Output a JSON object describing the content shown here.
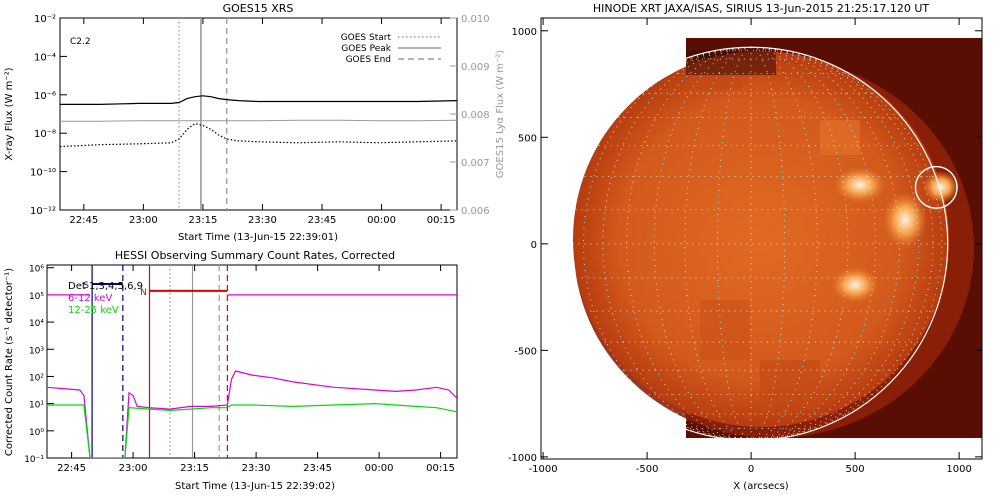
{
  "chart_data": [
    {
      "type": "line",
      "title": "GOES15 XRS",
      "xlabel": "Start Time (13-Jun-15 22:39:01)",
      "ylabel": "X-ray Flux (W m⁻²)",
      "y2label": "GOES15 Lyα Flux (W m⁻²)",
      "annotation": "C2.2",
      "x_ticks": [
        "22:45",
        "23:00",
        "23:15",
        "23:30",
        "23:45",
        "00:00",
        "00:15"
      ],
      "x_tick_minutes": [
        6,
        21,
        36,
        51,
        66,
        81,
        96
      ],
      "xlim_minutes": [
        0,
        100
      ],
      "y_scale": "log",
      "y_ticks": [
        "10⁻²",
        "10⁻⁴",
        "10⁻⁶",
        "10⁻⁸",
        "10⁻¹⁰",
        "10⁻¹²"
      ],
      "y_tick_exp": [
        -2,
        -4,
        -6,
        -8,
        -10,
        -12
      ],
      "y2_ticks": [
        "0.010",
        "0.009",
        "0.008",
        "0.007",
        "0.006"
      ],
      "y2_tick_values": [
        0.01,
        0.009,
        0.008,
        0.007,
        0.006
      ],
      "legend": {
        "placement": "top-right",
        "entries": [
          {
            "label": "GOES Start",
            "style": "dotted"
          },
          {
            "label": "GOES Peak",
            "style": "solid"
          },
          {
            "label": "GOES End",
            "style": "dashed"
          }
        ]
      },
      "markers_minutes": {
        "start": 30,
        "peak": 35.5,
        "end": 42
      },
      "series": [
        {
          "color": "#000000",
          "x": [
            0,
            10,
            20,
            28,
            30,
            32,
            34,
            36,
            38,
            40,
            42,
            45,
            50,
            60,
            70,
            80,
            90,
            100
          ],
          "log_flux": [
            -6.5,
            -6.5,
            -6.45,
            -6.45,
            -6.4,
            -6.2,
            -6.1,
            -6.05,
            -6.1,
            -6.2,
            -6.25,
            -6.3,
            -6.35,
            -6.35,
            -6.35,
            -6.35,
            -6.35,
            -6.3
          ]
        },
        {
          "color": "#000000",
          "style": "dotted",
          "x": [
            0,
            10,
            20,
            28,
            30,
            32,
            34,
            36,
            38,
            40,
            42,
            45,
            50,
            60,
            70,
            80,
            90,
            100
          ],
          "log_flux": [
            -8.7,
            -8.6,
            -8.55,
            -8.5,
            -8.3,
            -7.8,
            -7.5,
            -7.6,
            -7.8,
            -8.1,
            -8.3,
            -8.4,
            -8.45,
            -8.5,
            -8.45,
            -8.5,
            -8.45,
            -8.4
          ]
        },
        {
          "color": "#999999",
          "x": [
            0,
            10,
            20,
            30,
            40,
            50,
            60,
            70,
            80,
            90,
            100
          ],
          "lya": [
            0.00785,
            0.00785,
            0.00786,
            0.00786,
            0.00786,
            0.00786,
            0.00787,
            0.00787,
            0.00786,
            0.00786,
            0.00787
          ]
        }
      ]
    },
    {
      "type": "line",
      "title": "HESSI Observing Summary Count Rates, Corrected",
      "xlabel": "Start Time (13-Jun-15 22:39:02)",
      "ylabel": "Corrected Count Rate (s⁻¹ detector⁻¹)",
      "x_ticks": [
        "22:45",
        "23:00",
        "23:15",
        "23:30",
        "23:45",
        "00:00",
        "00:15"
      ],
      "x_tick_minutes": [
        6,
        21,
        36,
        51,
        66,
        81,
        96
      ],
      "xlim_minutes": [
        0,
        100
      ],
      "y_scale": "log",
      "y_ticks": [
        "10⁶",
        "10⁵",
        "10⁴",
        "10³",
        "10²",
        "10¹",
        "10⁰",
        "10⁻¹"
      ],
      "y_tick_exp": [
        6,
        5,
        4,
        3,
        2,
        1,
        0,
        -1
      ],
      "legend_text": [
        "Det 1,3,4,5,6,9",
        "6-12 keV",
        "12-25 keV"
      ],
      "legend_colors": [
        "#000000",
        "#dd00dd",
        "#00dd00"
      ],
      "flags": [
        {
          "label": "S",
          "color": "#000080",
          "x0": 11,
          "x1": 18.5,
          "log_level": 5.4
        },
        {
          "label": "N",
          "color": "#e00000",
          "x0": 25,
          "x1": 44,
          "log_level": 5.15
        }
      ],
      "vlines_minutes": [
        {
          "x": 11,
          "color": "#000080",
          "style": "solid"
        },
        {
          "x": 18.5,
          "color": "#000080",
          "style": "dashed"
        },
        {
          "x": 25,
          "color": "#e00000",
          "style": "solid"
        },
        {
          "x": 44,
          "color": "#e00000",
          "style": "dashed"
        },
        {
          "x": 30,
          "color": "#999999",
          "style": "dotted"
        },
        {
          "x": 35.5,
          "color": "#999999",
          "style": "solid"
        },
        {
          "x": 42,
          "color": "#999999",
          "style": "dashed"
        }
      ],
      "series": [
        {
          "name": "6-12 keV",
          "color": "#dd00dd",
          "x": [
            0,
            8,
            9,
            10.5,
            19,
            20,
            21,
            22,
            25,
            30,
            35,
            40,
            44,
            45,
            46,
            50,
            55,
            60,
            70,
            80,
            85,
            90,
            95,
            98,
            100
          ],
          "log_rate": [
            1.6,
            1.5,
            1.3,
            -1,
            -1,
            1.4,
            1.3,
            0.9,
            0.85,
            0.8,
            0.9,
            0.9,
            0.95,
            1.9,
            2.2,
            2.05,
            1.95,
            1.8,
            1.6,
            1.5,
            1.45,
            1.5,
            1.6,
            1.5,
            1.2
          ]
        },
        {
          "name": "6-12 keV",
          "color": "#dd00dd",
          "x": [
            0,
            10.5
          ],
          "log_rate": [
            5.0,
            5.0
          ]
        },
        {
          "name": "6-12 keV",
          "color": "#dd00dd",
          "x": [
            44,
            100
          ],
          "log_rate": [
            5.0,
            5.0
          ]
        },
        {
          "name": "12-25 keV",
          "color": "#00dd00",
          "x": [
            0,
            9,
            10.5,
            19,
            20,
            25,
            30,
            35,
            40,
            44,
            45,
            50,
            60,
            70,
            80,
            85,
            90,
            95,
            100
          ],
          "log_rate": [
            0.95,
            0.95,
            -1,
            -1,
            0.85,
            0.8,
            0.75,
            0.8,
            0.85,
            0.85,
            0.95,
            0.95,
            0.9,
            0.95,
            1.0,
            0.95,
            0.9,
            0.85,
            0.7
          ]
        }
      ]
    },
    {
      "type": "heatmap",
      "title": "HINODE XRT JAXA/ISAS, SIRIUS 13-Jun-2015 21:25:17.120 UT",
      "xlabel": "X (arcsecs)",
      "ylabel": "",
      "x_ticks": [
        -1000,
        -500,
        0,
        500,
        1000
      ],
      "y_ticks": [
        1000,
        500,
        0,
        -500,
        -1000
      ],
      "xlim": [
        -1010,
        1110
      ],
      "ylim": [
        -1010,
        1060
      ],
      "image_extent": {
        "x": [
          -380,
          1110
        ],
        "y": [
          -990,
          960
        ]
      },
      "solar_radius_arcsec": 945,
      "circle_marker": {
        "x": 890,
        "y": 265,
        "r": 100
      },
      "grid": true
    }
  ]
}
